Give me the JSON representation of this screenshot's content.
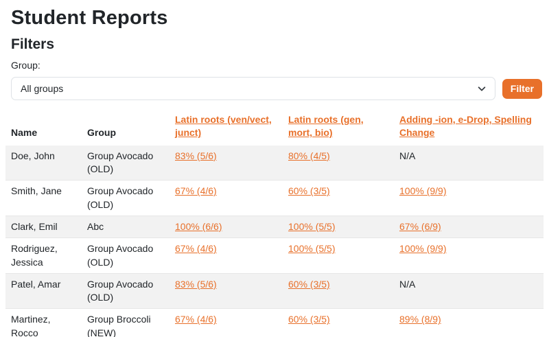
{
  "page": {
    "title": "Student Reports",
    "filters_heading": "Filters",
    "group_label": "Group:",
    "group_select_value": "All groups",
    "filter_button_label": "Filter"
  },
  "icons": {
    "select_chevron": "chevron-down-icon"
  },
  "colors": {
    "accent_orange": "#e8702a",
    "stripe_gray": "#f2f2f2",
    "border_gray": "#dee2e6",
    "text_dark": "#212529"
  },
  "table": {
    "columns": [
      {
        "label": "Name",
        "link": false
      },
      {
        "label": "Group",
        "link": false
      },
      {
        "label": "Latin roots (ven/vect, junct)",
        "link": true
      },
      {
        "label": "Latin roots (gen, mort, bio)",
        "link": true
      },
      {
        "label": "Adding -ion, e-Drop, Spelling Change",
        "link": true
      }
    ],
    "rows": [
      {
        "name": "Doe, John",
        "group": "Group Avocado (OLD)",
        "scores": [
          {
            "text": "83% (5/6)",
            "link": true
          },
          {
            "text": "80% (4/5)",
            "link": true
          },
          {
            "text": "N/A",
            "link": false
          }
        ]
      },
      {
        "name": "Smith, Jane",
        "group": "Group Avocado (OLD)",
        "scores": [
          {
            "text": "67% (4/6)",
            "link": true
          },
          {
            "text": "60% (3/5)",
            "link": true
          },
          {
            "text": "100% (9/9)",
            "link": true
          }
        ]
      },
      {
        "name": "Clark, Emil",
        "group": "Abc",
        "scores": [
          {
            "text": "100% (6/6)",
            "link": true
          },
          {
            "text": "100% (5/5)",
            "link": true
          },
          {
            "text": "67% (6/9)",
            "link": true
          }
        ]
      },
      {
        "name": "Rodriguez, Jessica",
        "group": "Group Avocado (OLD)",
        "scores": [
          {
            "text": "67% (4/6)",
            "link": true
          },
          {
            "text": "100% (5/5)",
            "link": true
          },
          {
            "text": "100% (9/9)",
            "link": true
          }
        ]
      },
      {
        "name": "Patel, Amar",
        "group": "Group Avocado (OLD)",
        "scores": [
          {
            "text": "83% (5/6)",
            "link": true
          },
          {
            "text": "60% (3/5)",
            "link": true
          },
          {
            "text": "N/A",
            "link": false
          }
        ]
      },
      {
        "name": "Martinez, Rocco",
        "group": "Group Broccoli (NEW)",
        "scores": [
          {
            "text": "67% (4/6)",
            "link": true
          },
          {
            "text": "60% (3/5)",
            "link": true
          },
          {
            "text": "89% (8/9)",
            "link": true
          }
        ]
      }
    ]
  }
}
